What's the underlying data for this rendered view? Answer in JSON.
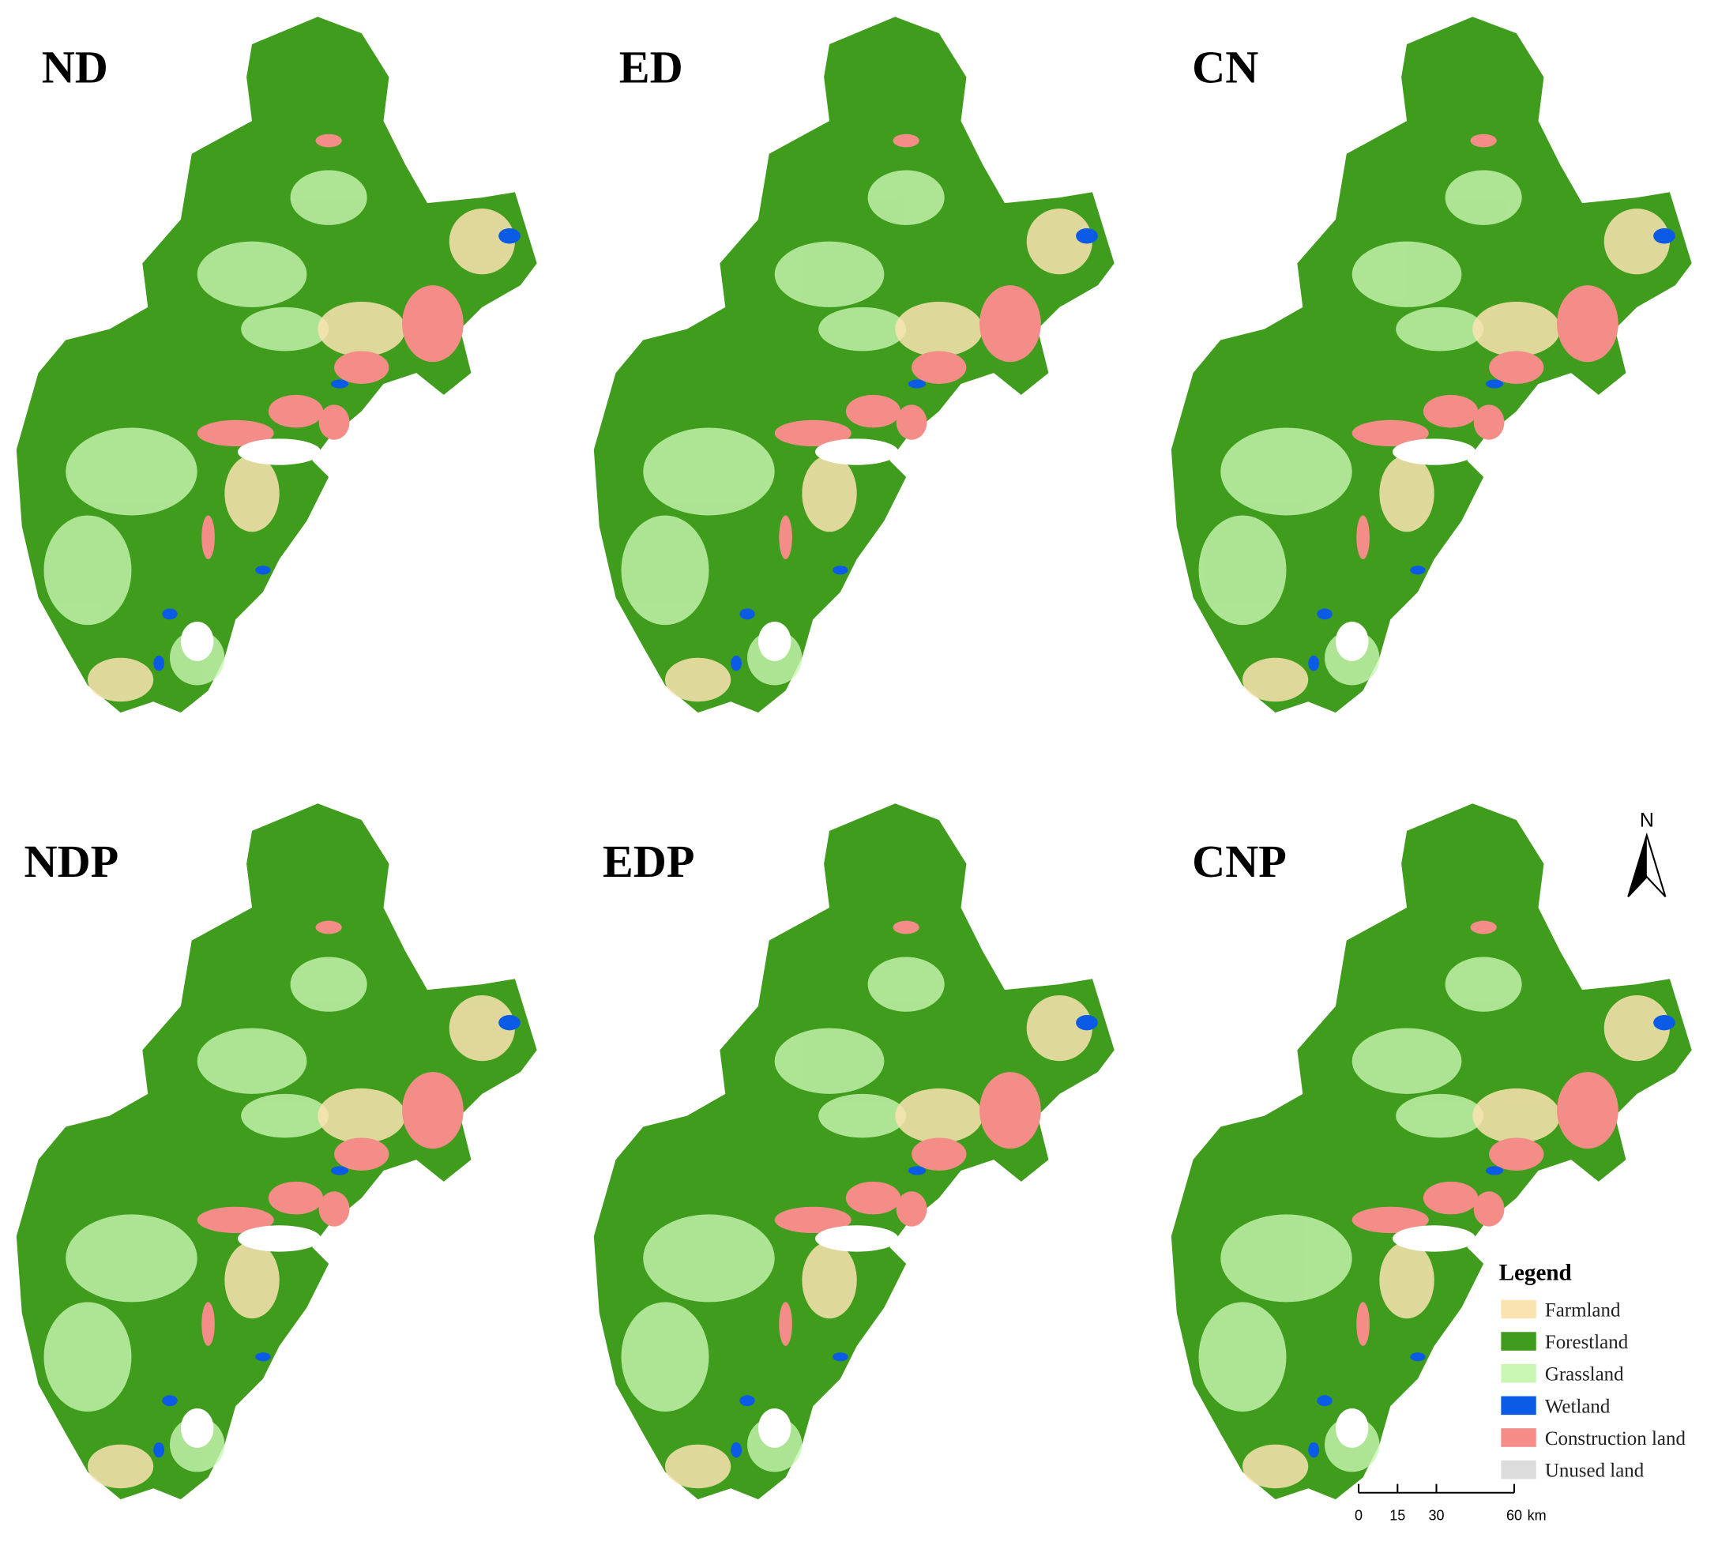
{
  "panels": [
    {
      "label": "ND"
    },
    {
      "label": "ED"
    },
    {
      "label": "CN"
    },
    {
      "label": "NDP"
    },
    {
      "label": "EDP"
    },
    {
      "label": "CNP"
    }
  ],
  "legend": {
    "title": "Legend",
    "items": [
      {
        "label": "Farmland",
        "color": "#fbe3b1"
      },
      {
        "label": "Forestland",
        "color": "#3f9c1c"
      },
      {
        "label": "Grassland",
        "color": "#c9f7b3"
      },
      {
        "label": "Wetland",
        "color": "#0b5be6"
      },
      {
        "label": "Construction land",
        "color": "#f48d87"
      },
      {
        "label": "Unused land",
        "color": "#dcdcdc"
      }
    ]
  },
  "north_arrow": {
    "label": "N"
  },
  "scale_bar": {
    "ticks": [
      0,
      15,
      30,
      60
    ],
    "unit": "km"
  }
}
